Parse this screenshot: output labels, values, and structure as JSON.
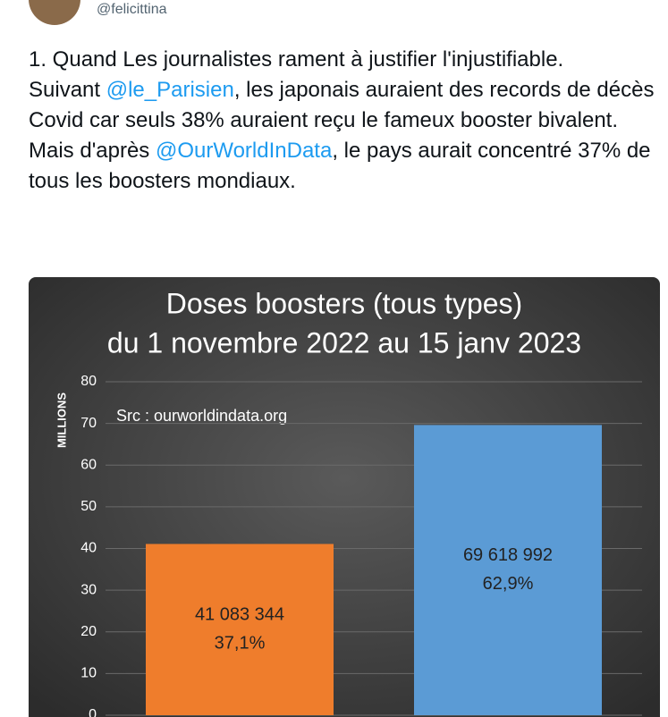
{
  "header": {
    "handle": "@felicittina"
  },
  "tweet": {
    "paragraphs": [
      [
        {
          "text": "1. Quand Les journalistes rament à justifier l'injustifiable."
        }
      ],
      [
        {
          "text": "Suivant "
        },
        {
          "text": "@le_Parisien",
          "mention": true
        },
        {
          "text": ", les japonais auraient des records de décès Covid car seuls 38% auraient reçu le fameux booster bivalent."
        }
      ],
      [
        {
          "text": "Mais d'après "
        },
        {
          "text": "@OurWorldInData",
          "mention": true
        },
        {
          "text": ", le pays aurait concentré 37% de tous les boosters mondiaux."
        }
      ]
    ]
  },
  "chart_data": {
    "type": "bar",
    "title": "Doses boosters (tous types)",
    "subtitle": "du 1 novembre 2022 au 15 janv 2023",
    "y_label": "MILLIONS",
    "annotation": "Src : ourworldindata.org",
    "categories": [
      null,
      null
    ],
    "values": [
      41.083344,
      69.618992
    ],
    "value_labels": [
      "41 083 344",
      "69 618 992"
    ],
    "share_labels": [
      "37,1%",
      "62,9%"
    ],
    "colors": [
      "#ef7d2c",
      "#5b9bd5"
    ],
    "ylim": [
      0,
      80
    ],
    "yticks": [
      0,
      10,
      20,
      30,
      40,
      50,
      60,
      70,
      80
    ],
    "grid": true
  }
}
